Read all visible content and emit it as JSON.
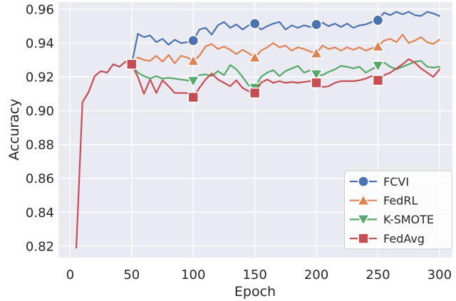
{
  "figure": {
    "background": "#ffffff",
    "plot_background": "#eaeaf2",
    "grid_color": "#ffffff",
    "text_color": "#262626",
    "legend": {
      "background": "#ffffff",
      "border_color": "#cccccc",
      "opacity": 0.85
    }
  },
  "chart_data": {
    "type": "line",
    "title": "",
    "xlabel": "Epoch",
    "ylabel": "Accuracy",
    "xlim": [
      -9.5,
      310.5
    ],
    "ylim": [
      0.8132,
      0.9642
    ],
    "xticks": [
      0,
      50,
      100,
      150,
      200,
      250,
      300
    ],
    "yticks": [
      0.82,
      0.84,
      0.86,
      0.88,
      0.9,
      0.92,
      0.94,
      0.96
    ],
    "grid": true,
    "legend_position": "lower-right",
    "marker_every_epochs": [
      50,
      100,
      150,
      200,
      250
    ],
    "series": [
      {
        "name": "FCVI",
        "color": "#4c72b0",
        "marker": "circle",
        "x": [
          50,
          55,
          60,
          65,
          70,
          75,
          80,
          85,
          90,
          95,
          100,
          105,
          110,
          115,
          120,
          125,
          130,
          135,
          140,
          145,
          150,
          155,
          160,
          165,
          170,
          175,
          180,
          185,
          190,
          195,
          200,
          205,
          210,
          215,
          220,
          225,
          230,
          235,
          240,
          245,
          250,
          255,
          260,
          265,
          270,
          275,
          280,
          285,
          290,
          295,
          300
        ],
        "y": [
          0.9275,
          0.9455,
          0.9435,
          0.9445,
          0.9405,
          0.9425,
          0.939,
          0.942,
          0.94,
          0.9405,
          0.9415,
          0.948,
          0.949,
          0.945,
          0.9505,
          0.9525,
          0.949,
          0.951,
          0.948,
          0.9505,
          0.9515,
          0.948,
          0.95,
          0.9515,
          0.9525,
          0.948,
          0.9505,
          0.949,
          0.9505,
          0.9495,
          0.951,
          0.952,
          0.95,
          0.9515,
          0.9495,
          0.9515,
          0.949,
          0.9505,
          0.951,
          0.9525,
          0.9535,
          0.958,
          0.9565,
          0.9585,
          0.957,
          0.9585,
          0.9565,
          0.956,
          0.9585,
          0.9575,
          0.956
        ]
      },
      {
        "name": "FedRL",
        "color": "#dd8452",
        "marker": "triangle-up",
        "x": [
          50,
          55,
          60,
          65,
          70,
          75,
          80,
          85,
          90,
          95,
          100,
          105,
          110,
          115,
          120,
          125,
          130,
          135,
          140,
          145,
          150,
          155,
          160,
          165,
          170,
          175,
          180,
          185,
          190,
          195,
          200,
          205,
          210,
          215,
          220,
          225,
          230,
          235,
          240,
          245,
          250,
          255,
          260,
          265,
          270,
          275,
          280,
          285,
          290,
          295,
          300
        ],
        "y": [
          0.9275,
          0.9315,
          0.93,
          0.9295,
          0.9325,
          0.929,
          0.933,
          0.928,
          0.9325,
          0.9315,
          0.9295,
          0.9325,
          0.938,
          0.9395,
          0.9365,
          0.938,
          0.936,
          0.9335,
          0.936,
          0.934,
          0.9315,
          0.9355,
          0.9375,
          0.94,
          0.9375,
          0.9385,
          0.9355,
          0.9375,
          0.9365,
          0.935,
          0.934,
          0.9385,
          0.9365,
          0.9375,
          0.9355,
          0.9375,
          0.936,
          0.9375,
          0.9355,
          0.937,
          0.938,
          0.9415,
          0.9425,
          0.9405,
          0.945,
          0.94,
          0.9415,
          0.9435,
          0.9405,
          0.9395,
          0.942
        ]
      },
      {
        "name": "K-SMOTE",
        "color": "#55a868",
        "marker": "triangle-down",
        "x": [
          50,
          55,
          60,
          65,
          70,
          75,
          80,
          85,
          90,
          95,
          100,
          105,
          110,
          115,
          120,
          125,
          130,
          135,
          140,
          145,
          150,
          155,
          160,
          165,
          170,
          175,
          180,
          185,
          190,
          195,
          200,
          205,
          210,
          215,
          220,
          225,
          230,
          235,
          240,
          245,
          250,
          255,
          260,
          265,
          270,
          275,
          280,
          285,
          290,
          295,
          300
        ],
        "y": [
          0.9275,
          0.9225,
          0.9205,
          0.919,
          0.9205,
          0.919,
          0.9195,
          0.919,
          0.9185,
          0.918,
          0.9175,
          0.921,
          0.9215,
          0.9205,
          0.9235,
          0.921,
          0.927,
          0.9245,
          0.92,
          0.915,
          0.9135,
          0.92,
          0.9225,
          0.924,
          0.9205,
          0.9235,
          0.925,
          0.9265,
          0.9225,
          0.924,
          0.9215,
          0.921,
          0.923,
          0.9245,
          0.9265,
          0.926,
          0.925,
          0.926,
          0.9225,
          0.9245,
          0.9265,
          0.9285,
          0.926,
          0.9245,
          0.926,
          0.9275,
          0.929,
          0.9295,
          0.926,
          0.9255,
          0.926
        ]
      },
      {
        "name": "FedAvg",
        "color": "#c44e52",
        "marker": "square",
        "x": [
          5,
          10,
          15,
          20,
          25,
          30,
          35,
          40,
          45,
          50,
          55,
          60,
          65,
          70,
          75,
          80,
          85,
          90,
          95,
          100,
          105,
          110,
          115,
          120,
          125,
          130,
          135,
          140,
          145,
          150,
          155,
          160,
          165,
          170,
          175,
          180,
          185,
          190,
          195,
          200,
          205,
          210,
          215,
          220,
          225,
          230,
          235,
          240,
          245,
          250,
          255,
          260,
          265,
          270,
          275,
          280,
          285,
          290,
          295,
          300
        ],
        "y": [
          0.819,
          0.905,
          0.911,
          0.9205,
          0.9235,
          0.9225,
          0.9275,
          0.926,
          0.929,
          0.9275,
          0.92,
          0.91,
          0.9185,
          0.9105,
          0.918,
          0.9145,
          0.9105,
          0.9105,
          0.9105,
          0.908,
          0.9135,
          0.9185,
          0.922,
          0.9185,
          0.9165,
          0.9145,
          0.918,
          0.9135,
          0.9115,
          0.9105,
          0.9165,
          0.9185,
          0.9165,
          0.9175,
          0.9165,
          0.917,
          0.9165,
          0.917,
          0.9175,
          0.9165,
          0.914,
          0.9145,
          0.9165,
          0.9175,
          0.9175,
          0.9175,
          0.918,
          0.919,
          0.9205,
          0.918,
          0.921,
          0.9225,
          0.925,
          0.9275,
          0.9305,
          0.9285,
          0.925,
          0.9225,
          0.92,
          0.9245
        ]
      }
    ]
  }
}
